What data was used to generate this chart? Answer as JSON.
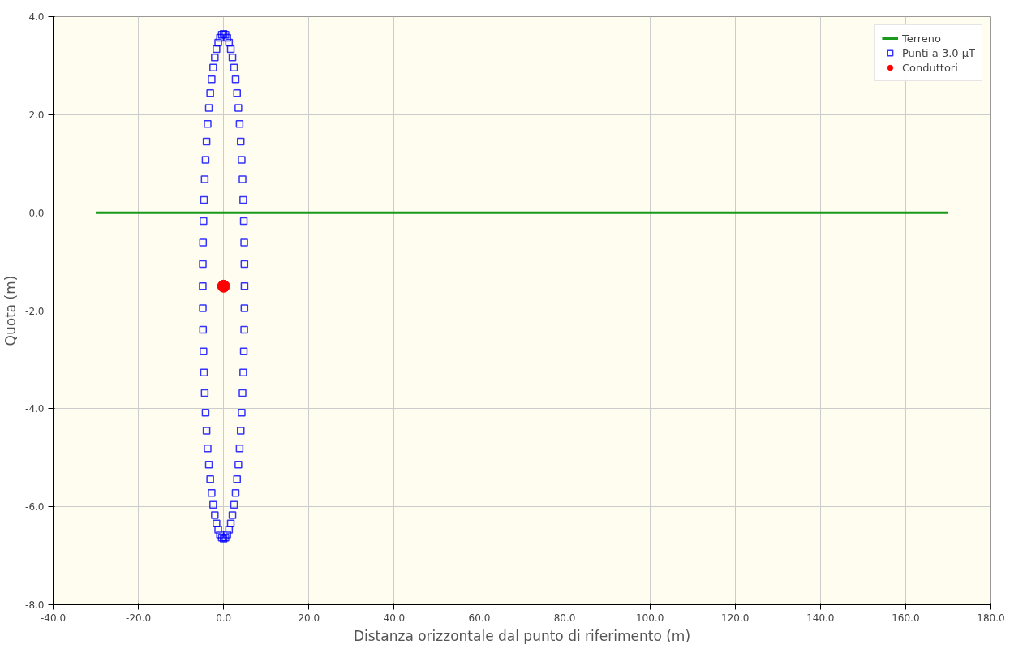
{
  "chart_data": {
    "type": "scatter",
    "xlabel": "Distanza orizzontale dal punto di riferimento (m)",
    "ylabel": "Quota (m)",
    "xlim": [
      -40,
      180
    ],
    "ylim": [
      -8,
      4
    ],
    "xticks": [
      {
        "value": -40,
        "label": "-40.0"
      },
      {
        "value": -20,
        "label": "-20.0"
      },
      {
        "value": 0,
        "label": "0.0"
      },
      {
        "value": 20,
        "label": "20.0"
      },
      {
        "value": 40,
        "label": "40.0"
      },
      {
        "value": 60,
        "label": "60.0"
      },
      {
        "value": 80,
        "label": "80.0"
      },
      {
        "value": 100,
        "label": "100.0"
      },
      {
        "value": 120,
        "label": "120.0"
      },
      {
        "value": 140,
        "label": "140.0"
      },
      {
        "value": 160,
        "label": "160.0"
      },
      {
        "value": 180,
        "label": "180.0"
      }
    ],
    "yticks": [
      {
        "value": -8,
        "label": "-8.0"
      },
      {
        "value": -6,
        "label": "-6.0"
      },
      {
        "value": -4,
        "label": "-4.0"
      },
      {
        "value": -2,
        "label": "-2.0"
      },
      {
        "value": 0,
        "label": "0.0"
      },
      {
        "value": 2,
        "label": "2.0"
      },
      {
        "value": 4,
        "label": "4.0"
      }
    ],
    "grid": true,
    "legend": "top right",
    "series": [
      {
        "name": "Terreno",
        "type": "line",
        "color": "#1a9a1a",
        "marker": "none",
        "line_style": "solid",
        "x": [
          -30,
          170
        ],
        "values": [
          0,
          0
        ]
      },
      {
        "name": "Punti a 3.0 µT",
        "color": "#0000ff",
        "marker": "square",
        "x": [
          4.9,
          4.88,
          4.83,
          4.73,
          4.6,
          4.44,
          4.24,
          4.01,
          3.75,
          3.46,
          3.15,
          2.81,
          2.45,
          2.07,
          1.68,
          1.27,
          0.85,
          0.43,
          0,
          -0.43,
          -0.85,
          -1.27,
          -1.68,
          -2.07,
          -2.45,
          -2.81,
          -3.15,
          -3.46,
          -3.75,
          -4.01,
          -4.24,
          -4.44,
          -4.6,
          -4.73,
          -4.83,
          -4.88,
          -4.9,
          -4.88,
          -4.83,
          -4.73,
          -4.6,
          -4.44,
          -4.24,
          -4.01,
          -3.75,
          -3.46,
          -3.15,
          -2.81,
          -2.45,
          -2.07,
          -1.68,
          -1.27,
          -0.85,
          -0.43,
          0,
          0.43,
          0.85,
          1.27,
          1.68,
          2.07,
          2.45,
          2.81,
          3.15,
          3.46,
          3.75,
          4.01,
          4.24,
          4.44,
          4.6,
          4.73,
          4.83,
          4.88
        ],
        "values": [
          -1.5,
          -1.05,
          -0.61,
          -0.17,
          0.26,
          0.68,
          1.08,
          1.45,
          1.81,
          2.14,
          2.44,
          2.72,
          2.96,
          3.17,
          3.34,
          3.47,
          3.57,
          3.63,
          3.65,
          3.63,
          3.57,
          3.47,
          3.34,
          3.17,
          2.96,
          2.72,
          2.44,
          2.14,
          1.81,
          1.45,
          1.08,
          0.68,
          0.26,
          -0.17,
          -0.61,
          -1.05,
          -1.5,
          -1.95,
          -2.39,
          -2.83,
          -3.26,
          -3.68,
          -4.08,
          -4.45,
          -4.81,
          -5.14,
          -5.44,
          -5.72,
          -5.96,
          -6.17,
          -6.34,
          -6.47,
          -6.57,
          -6.63,
          -6.65,
          -6.63,
          -6.57,
          -6.47,
          -6.34,
          -6.17,
          -5.96,
          -5.72,
          -5.44,
          -5.14,
          -4.81,
          -4.45,
          -4.08,
          -3.68,
          -3.26,
          -2.83,
          -2.39,
          -1.95
        ]
      },
      {
        "name": "Conduttori",
        "color": "#ff0000",
        "marker": "circle",
        "x": [
          0
        ],
        "values": [
          -1.5
        ]
      }
    ]
  }
}
